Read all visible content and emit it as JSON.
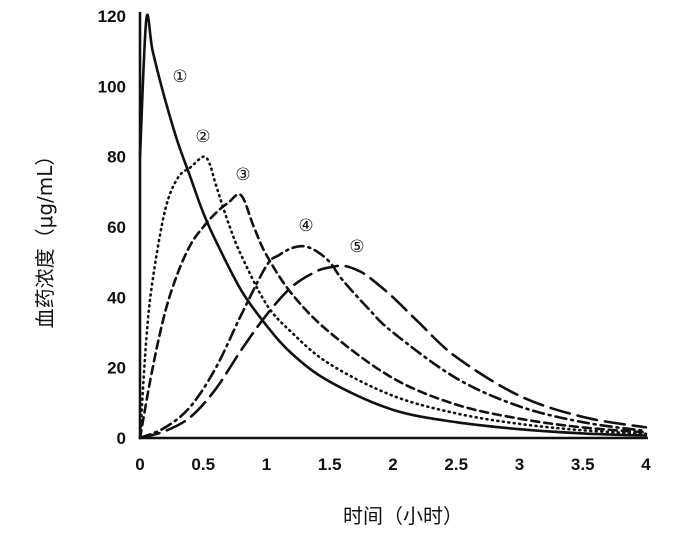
{
  "chart_data": {
    "type": "line",
    "title": "",
    "xlabel": "时间（小时）",
    "ylabel": "血药浓度（μg/mL）",
    "xlim": [
      0,
      4
    ],
    "ylim": [
      0,
      120
    ],
    "xticks": [
      "0",
      "0.5",
      "1",
      "1.5",
      "2",
      "2.5",
      "3",
      "3.5",
      "4"
    ],
    "yticks": [
      "0",
      "20",
      "40",
      "60",
      "80",
      "100",
      "120"
    ],
    "grid": false,
    "legend": "none",
    "series": [
      {
        "label": "①",
        "dash": "solid",
        "x": [
          0,
          0.05,
          0.1,
          0.2,
          0.3,
          0.4,
          0.5,
          0.6,
          0.8,
          1.0,
          1.2,
          1.5,
          2.0,
          2.5,
          3.0,
          3.5,
          4.0
        ],
        "y": [
          80,
          119,
          110,
          96,
          84,
          74,
          64,
          56,
          42,
          32,
          24,
          16,
          8,
          4.5,
          2.5,
          1.3,
          0.7
        ]
      },
      {
        "label": "②",
        "dash": "dotted",
        "x": [
          0,
          0.05,
          0.1,
          0.2,
          0.3,
          0.4,
          0.5,
          0.55,
          0.6,
          0.7,
          0.8,
          1.0,
          1.2,
          1.5,
          2.0,
          2.5,
          3.0,
          3.5,
          4.0
        ],
        "y": [
          0,
          28,
          45,
          65,
          74,
          77,
          80,
          78,
          72,
          61,
          52,
          38,
          30,
          21,
          12,
          7,
          4,
          2.2,
          1.2
        ]
      },
      {
        "label": "③",
        "dash": "dashed",
        "x": [
          0,
          0.1,
          0.2,
          0.3,
          0.4,
          0.5,
          0.6,
          0.7,
          0.8,
          0.9,
          1.0,
          1.2,
          1.5,
          2.0,
          2.5,
          3.0,
          3.5,
          4.0
        ],
        "y": [
          0,
          20,
          36,
          47,
          55,
          60,
          64,
          67,
          69,
          60,
          52,
          41,
          30,
          17,
          9.5,
          5.5,
          3,
          1.6
        ]
      },
      {
        "label": "④",
        "dash": "dashdot",
        "x": [
          0,
          0.2,
          0.4,
          0.6,
          0.8,
          1.0,
          1.1,
          1.2,
          1.3,
          1.4,
          1.5,
          1.6,
          1.8,
          2.0,
          2.5,
          3.0,
          3.5,
          4.0
        ],
        "y": [
          0,
          3,
          9,
          20,
          35,
          49,
          52,
          54,
          54.5,
          53,
          50,
          45,
          37,
          30,
          17,
          9,
          4.5,
          2
        ]
      },
      {
        "label": "⑤",
        "dash": "longdash",
        "x": [
          0,
          0.2,
          0.4,
          0.6,
          0.8,
          1.0,
          1.2,
          1.4,
          1.5,
          1.6,
          1.7,
          1.8,
          2.0,
          2.2,
          2.5,
          3.0,
          3.5,
          4.0
        ],
        "y": [
          0,
          2,
          6,
          14,
          25,
          35,
          43,
          47.5,
          48.5,
          49,
          48,
          46,
          40,
          33,
          23,
          12,
          6,
          3
        ]
      }
    ]
  }
}
